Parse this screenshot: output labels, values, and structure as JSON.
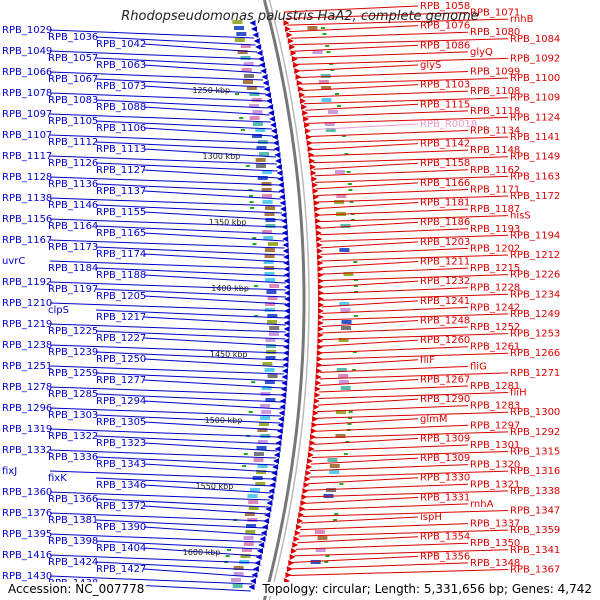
{
  "title": "Rhodopseudomonas palustris HaA2, complete genome",
  "footer": {
    "accession": "Accession: NC_007778",
    "stats": "Topology: circular; Length: 5,331,656 bp; Genes: 4,742"
  },
  "colors": {
    "left_strand": "#0000cc",
    "right_strand": "#dd0000",
    "rna": "#ee99cc",
    "backbone": "#888888"
  },
  "ticks": [
    "1250 kbp",
    "1300 kbp",
    "1350 kbp",
    "1400 kbp",
    "1450 kbp",
    "1500 kbp",
    "1550 kbp",
    "1600 kbp"
  ],
  "left_labels": [
    "RPB_1029",
    "RPB_1036",
    "RPB_1042",
    "RPB_1049",
    "RPB_1057",
    "RPB_1063",
    "RPB_1066",
    "RPB_1067",
    "RPB_1073",
    "RPB_1078",
    "RPB_1083",
    "RPB_1088",
    "RPB_1097",
    "RPB_1105",
    "RPB_1106",
    "RPB_1107",
    "RPB_1112",
    "RPB_1113",
    "RPB_1117",
    "RPB_1126",
    "RPB_1127",
    "RPB_1128",
    "RPB_1136",
    "RPB_1137",
    "RPB_1138",
    "RPB_1146",
    "RPB_1155",
    "RPB_1156",
    "RPB_1164",
    "RPB_1165",
    "RPB_1167",
    "RPB_1173",
    "RPB_1174",
    "uvrC",
    "RPB_1184",
    "RPB_1188",
    "RPB_1192",
    "RPB_1197",
    "RPB_1205",
    "RPB_1210",
    "clpS",
    "RPB_1217",
    "RPB_1219",
    "RPB_1225",
    "RPB_1227",
    "RPB_1238",
    "RPB_1239",
    "RPB_1250",
    "RPB_1251",
    "RPB_1259",
    "RPB_1277",
    "RPB_1278",
    "RPB_1285",
    "RPB_1294",
    "RPB_1296",
    "RPB_1303",
    "RPB_1305",
    "RPB_1319",
    "RPB_1322",
    "RPB_1323",
    "RPB_1332",
    "RPB_1336",
    "RPB_1343",
    "fixJ",
    "fixK",
    "RPB_1346",
    "RPB_1360",
    "RPB_1366",
    "RPB_1372",
    "RPB_1376",
    "RPB_1381",
    "RPB_1390",
    "RPB_1395",
    "RPB_1398",
    "RPB_1404",
    "RPB_1416",
    "RPB_1424",
    "RPB_1427",
    "RPB_1430",
    "RPB_1438"
  ],
  "right_labels": [
    "RPB_1058",
    "RPB_1071",
    "rnhB",
    "RPB_1076",
    "RPB_1080",
    "RPB_1084",
    "RPB_1086",
    "glyQ",
    "RPB_1092",
    "glyS",
    "RPB_1099",
    "RPB_1100",
    "RPB_1103",
    "RPB_1108",
    "RPB_1109",
    "RPB_1115",
    "RPB_1118",
    "RPB_1124",
    "RPB_R0018",
    "RPB_1134",
    "RPB_1141",
    "RPB_1142",
    "RPB_1148",
    "RPB_1149",
    "RPB_1158",
    "RPB_1162",
    "RPB_1163",
    "RPB_1166",
    "RPB_1171",
    "RPB_1172",
    "RPB_1181",
    "RPB_1187",
    "hisS",
    "RPB_1186",
    "RPB_1193",
    "RPB_1194",
    "RPB_1203",
    "RPB_1202",
    "RPB_1212",
    "RPB_1211",
    "RPB_1215",
    "RPB_1226",
    "RPB_1232",
    "RPB_1228",
    "RPB_1234",
    "RPB_1241",
    "RPB_1242",
    "RPB_1249",
    "RPB_1248",
    "RPB_1252",
    "RPB_1253",
    "RPB_1260",
    "RPB_1261",
    "RPB_1266",
    "fliF",
    "fliG",
    "RPB_1271",
    "RPB_1267",
    "RPB_1281",
    "fliH",
    "RPB_1290",
    "RPB_1283",
    "RPB_1300",
    "glmM",
    "RPB_1297",
    "RPB_1292",
    "RPB_1309",
    "RPB_1301",
    "RPB_1315",
    "RPB_1309",
    "RPB_1320",
    "RPB_1316",
    "RPB_1330",
    "RPB_1321",
    "RPB_1338",
    "RPB_1331",
    "rnhA",
    "RPB_1347",
    "ispH",
    "RPB_1337",
    "RPB_1359",
    "RPB_1354",
    "RPB_1350",
    "RPB_1341",
    "RPB_1356",
    "RPB_1348",
    "RPB_1367"
  ]
}
